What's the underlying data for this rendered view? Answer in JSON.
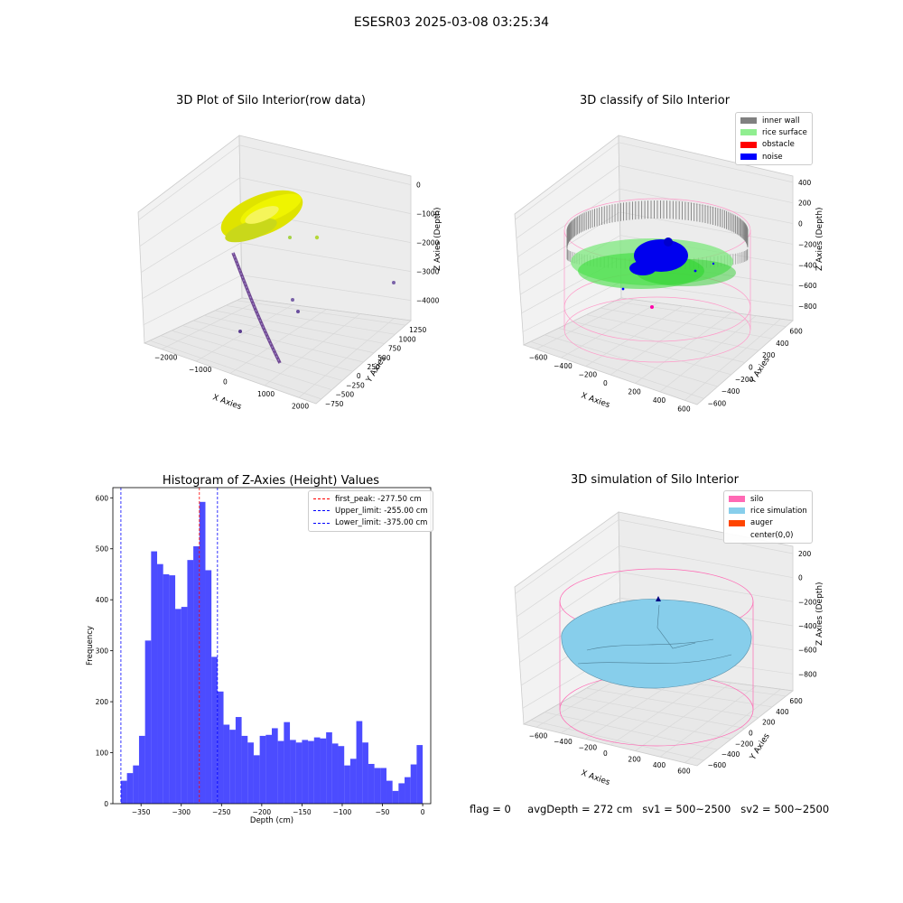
{
  "figure": {
    "suptitle": "ESESR03 2025-03-08 03:25:34"
  },
  "panels": {
    "raw": {
      "title": "3D Plot of Silo Interior(row data)",
      "xlabel": "X Axies",
      "ylabel": "Y Axies",
      "zlabel": "Z Axies (Depth)",
      "x_ticks": [
        "−2000",
        "−1000",
        "0",
        "1000",
        "2000"
      ],
      "y_ticks": [
        "−750",
        "−500",
        "−250",
        "0",
        "250",
        "500",
        "750",
        "1000",
        "1250"
      ],
      "z_ticks": [
        "0",
        "−1000",
        "−2000",
        "−3000",
        "−4000"
      ]
    },
    "classify": {
      "title": "3D classify of Silo Interior",
      "xlabel": "X Axies",
      "ylabel": "Y Axies",
      "zlabel": "Z Axies (Depth)",
      "x_ticks": [
        "−600",
        "−400",
        "−200",
        "0",
        "200",
        "400",
        "600"
      ],
      "y_ticks": [
        "−600",
        "−400",
        "−200",
        "0",
        "200",
        "400",
        "600"
      ],
      "z_ticks": [
        "400",
        "200",
        "0",
        "−200",
        "−400",
        "−600",
        "−800"
      ],
      "legend": [
        {
          "label": "inner wall",
          "color": "#808080"
        },
        {
          "label": "rice surface",
          "color": "#90ee90"
        },
        {
          "label": "obstacle",
          "color": "#ff0000"
        },
        {
          "label": "noise",
          "color": "#0000ff"
        }
      ]
    },
    "simulation": {
      "title": "3D simulation of Silo Interior",
      "xlabel": "X Axies",
      "ylabel": "Y Axies",
      "zlabel": "Z Axies (Depth)",
      "x_ticks": [
        "−600",
        "−400",
        "−200",
        "0",
        "200",
        "400",
        "600"
      ],
      "y_ticks": [
        "−600",
        "−400",
        "−200",
        "0",
        "200",
        "400",
        "600"
      ],
      "z_ticks": [
        "200",
        "0",
        "−200",
        "−400",
        "−600",
        "−800"
      ],
      "legend": [
        {
          "label": "silo",
          "color": "#ff69b4"
        },
        {
          "label": "rice simulation",
          "color": "#87ceeb"
        },
        {
          "label": "auger",
          "color": "#ff4500"
        },
        {
          "label": "center(0,0)",
          "color": ""
        }
      ]
    }
  },
  "status": {
    "flag": "flag = 0",
    "avg_depth": "avgDepth = 272 cm",
    "sv1": "sv1 = 500~2500",
    "sv2": "sv2 = 500~2500"
  },
  "chart_data": [
    {
      "type": "bar",
      "title": "Histogram of Z-Axies (Height) Values",
      "xlabel": "Depth (cm)",
      "ylabel": "Frequency",
      "xlim": [
        -385,
        10
      ],
      "ylim": [
        0,
        620
      ],
      "x_ticks": [
        -350,
        -300,
        -250,
        -200,
        -150,
        -100,
        -50,
        0
      ],
      "y_ticks": [
        0,
        100,
        200,
        300,
        400,
        500,
        600
      ],
      "bin_width": 7.5,
      "bin_start": -375,
      "values": [
        45,
        60,
        75,
        133,
        320,
        495,
        470,
        450,
        448,
        382,
        386,
        478,
        505,
        592,
        458,
        288,
        220,
        155,
        145,
        170,
        133,
        120,
        95,
        133,
        135,
        148,
        123,
        160,
        125,
        120,
        125,
        123,
        130,
        128,
        140,
        118,
        113,
        75,
        88,
        162,
        120,
        78,
        70,
        70,
        45,
        25,
        40,
        52,
        77,
        115
      ],
      "bar_color": "#0000ff",
      "bar_alpha": 0.7,
      "reference_lines": [
        {
          "name": "first_peak",
          "label": "first_peak: -277.50 cm",
          "x": -277.5,
          "color": "#ff0000"
        },
        {
          "name": "upper-limit",
          "label": "Upper_limit: -255.00 cm",
          "x": -255.0,
          "color": "#0000ff"
        },
        {
          "name": "lower-limit",
          "label": "Lower_limit: -375.00 cm",
          "x": -375.0,
          "color": "#0000ff"
        }
      ],
      "legend_position": "top-right"
    }
  ]
}
